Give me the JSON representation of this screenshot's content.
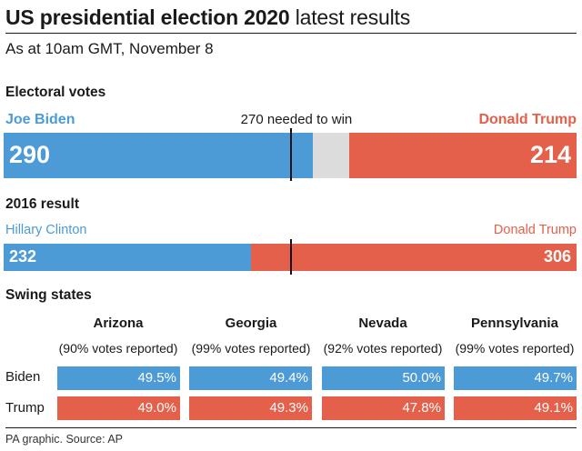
{
  "header": {
    "title_bold": "US presidential election 2020",
    "title_light": "latest results",
    "subtitle": "As at 10am GMT, November 8"
  },
  "electoral": {
    "section_label": "Electoral votes",
    "needed_label": "270 needed to win",
    "left_name": "Joe Biden",
    "right_name": "Donald Trump",
    "left_value": "290",
    "right_value": "214"
  },
  "result2016": {
    "section_label": "2016 result",
    "left_name": "Hillary Clinton",
    "right_name": "Donald Trump",
    "left_value": "232",
    "right_value": "306"
  },
  "swing": {
    "section_label": "Swing states",
    "row_labels": [
      "Biden",
      "Trump"
    ],
    "states": [
      {
        "name": "Arizona",
        "reported": "(90% votes reported)",
        "biden": "49.5%",
        "trump": "49.0%"
      },
      {
        "name": "Georgia",
        "reported": "(99% votes reported)",
        "biden": "49.4%",
        "trump": "49.3%"
      },
      {
        "name": "Nevada",
        "reported": "(92% votes reported)",
        "biden": "50.0%",
        "trump": "47.8%"
      },
      {
        "name": "Pennsylvania",
        "reported": "(99% votes reported)",
        "biden": "49.7%",
        "trump": "49.1%"
      }
    ]
  },
  "source": "PA graphic. Source: AP",
  "colors": {
    "democrat": "#4c9ad6",
    "republican": "#e5604a",
    "undecided": "#dcdcdc"
  },
  "chart_data": [
    {
      "type": "bar",
      "title": "Electoral votes",
      "categories": [
        "Joe Biden",
        "Undecided",
        "Donald Trump"
      ],
      "values": [
        290,
        34,
        214
      ],
      "total": 538,
      "threshold": 270,
      "threshold_label": "270 needed to win"
    },
    {
      "type": "bar",
      "title": "2016 result",
      "categories": [
        "Hillary Clinton",
        "Donald Trump"
      ],
      "values": [
        232,
        306
      ],
      "total": 538,
      "threshold": 270
    },
    {
      "type": "table",
      "title": "Swing states",
      "categories": [
        "Arizona",
        "Georgia",
        "Nevada",
        "Pennsylvania"
      ],
      "series": [
        {
          "name": "Biden",
          "values": [
            49.5,
            49.4,
            50.0,
            49.7
          ]
        },
        {
          "name": "Trump",
          "values": [
            49.0,
            49.3,
            47.8,
            49.1
          ]
        }
      ],
      "reported_pct": [
        90,
        99,
        92,
        99
      ]
    }
  ]
}
